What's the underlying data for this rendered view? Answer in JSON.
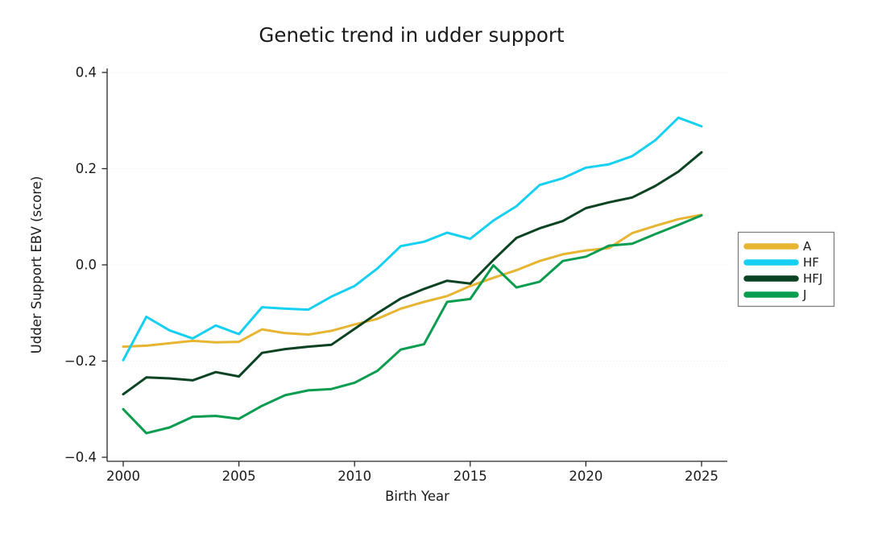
{
  "chart_data": {
    "type": "line",
    "title": "Genetic trend in udder support",
    "xlabel": "Birth Year",
    "ylabel": "Udder Support EBV (score)",
    "xlim": [
      2000,
      2025
    ],
    "ylim": [
      -0.4,
      0.4
    ],
    "grid": "faint dotted horizontal lines at y tick values",
    "legend_position": "right, boxed",
    "background_color": "#ffffff",
    "axis_color": "#262626",
    "xticks": [
      2000,
      2005,
      2010,
      2015,
      2020,
      2025
    ],
    "xtick_labels": [
      "2000",
      "2005",
      "2010",
      "2015",
      "2020",
      "2025"
    ],
    "yticks": [
      0.4,
      0.2,
      0.0,
      -0.2,
      -0.4
    ],
    "ytick_labels": [
      "0.4",
      "0.2",
      "0.0",
      "−0.2",
      "−0.4"
    ],
    "x": [
      2000,
      2001,
      2002,
      2003,
      2004,
      2005,
      2006,
      2007,
      2008,
      2009,
      2010,
      2011,
      2012,
      2013,
      2014,
      2015,
      2016,
      2017,
      2018,
      2019,
      2020,
      2021,
      2022,
      2023,
      2024,
      2025
    ],
    "series": [
      {
        "name": "A",
        "color": "#E7B531",
        "values": [
          -0.17,
          -0.168,
          -0.163,
          -0.158,
          -0.161,
          -0.16,
          -0.134,
          -0.142,
          -0.145,
          -0.137,
          -0.124,
          -0.112,
          -0.091,
          -0.077,
          -0.065,
          -0.044,
          -0.027,
          -0.011,
          0.008,
          0.022,
          0.03,
          0.035,
          0.066,
          0.081,
          0.095,
          0.104
        ]
      },
      {
        "name": "HF",
        "color": "#16D0F2",
        "values": [
          -0.198,
          -0.108,
          -0.136,
          -0.153,
          -0.126,
          -0.144,
          -0.088,
          -0.091,
          -0.093,
          -0.066,
          -0.044,
          -0.007,
          0.039,
          0.048,
          0.067,
          0.054,
          0.092,
          0.122,
          0.166,
          0.18,
          0.202,
          0.209,
          0.226,
          0.259,
          0.306,
          0.288
        ]
      },
      {
        "name": "HFJ",
        "color": "#0C4323",
        "values": [
          -0.269,
          -0.234,
          -0.236,
          -0.24,
          -0.223,
          -0.232,
          -0.183,
          -0.175,
          -0.17,
          -0.166,
          -0.133,
          -0.1,
          -0.07,
          -0.05,
          -0.033,
          -0.039,
          0.01,
          0.056,
          0.076,
          0.091,
          0.118,
          0.13,
          0.14,
          0.164,
          0.194,
          0.234
        ]
      },
      {
        "name": "J",
        "color": "#0A9D4F",
        "values": [
          -0.3,
          -0.35,
          -0.338,
          -0.316,
          -0.314,
          -0.32,
          -0.293,
          -0.271,
          -0.261,
          -0.258,
          -0.245,
          -0.22,
          -0.176,
          -0.165,
          -0.077,
          -0.071,
          -0.001,
          -0.047,
          -0.035,
          0.008,
          0.017,
          0.04,
          0.044,
          0.064,
          0.083,
          0.103
        ]
      }
    ]
  }
}
